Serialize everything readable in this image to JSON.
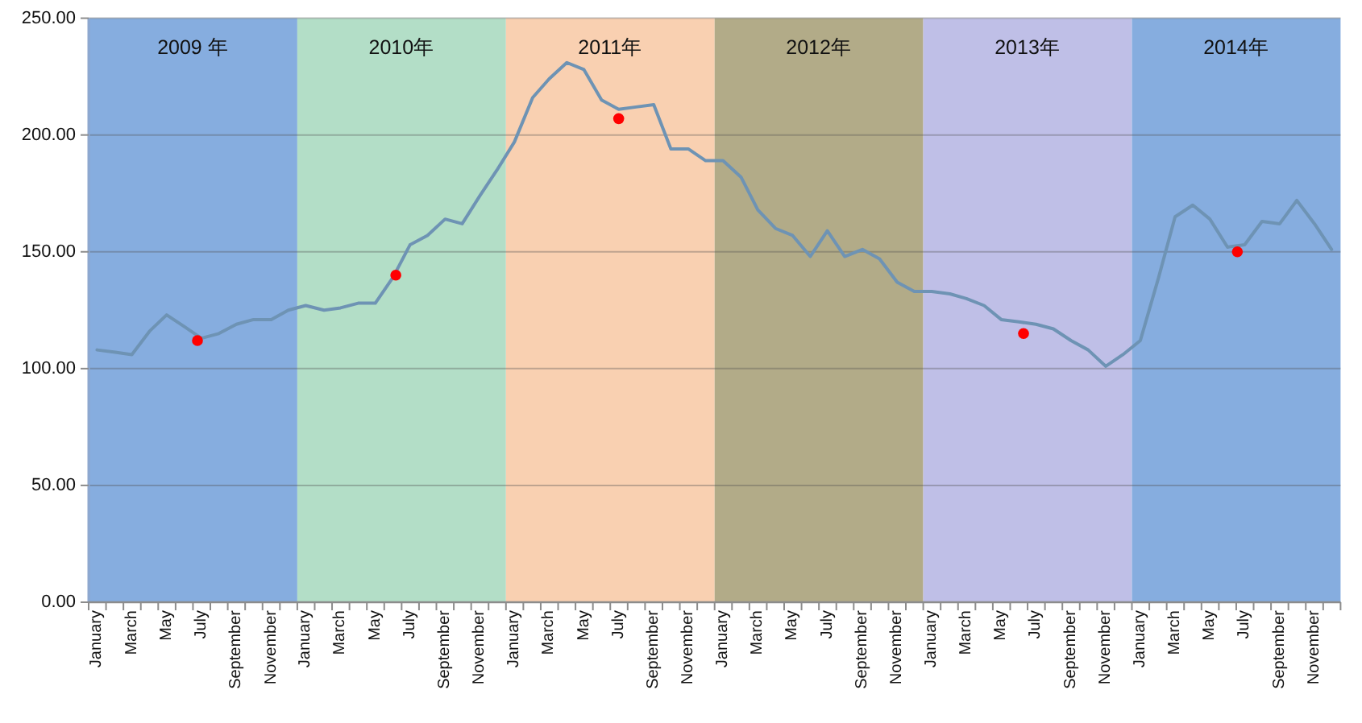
{
  "chart_data": {
    "type": "line",
    "x": [
      "2009-01-16",
      "2009-02-16",
      "2009-03-16",
      "2009-04-16",
      "2009-05-16",
      "2009-06-16",
      "2009-07-16",
      "2009-08-16",
      "2009-09-16",
      "2009-10-16",
      "2009-11-16",
      "2009-12-16",
      "2010-01-16",
      "2010-02-16",
      "2010-03-16",
      "2010-04-16",
      "2010-05-16",
      "2010-06-16",
      "2010-07-16",
      "2010-08-16",
      "2010-09-16",
      "2010-10-16",
      "2010-11-16",
      "2010-12-16",
      "2011-01-16",
      "2011-02-16",
      "2011-03-16",
      "2011-04-16",
      "2011-05-16",
      "2011-06-16",
      "2011-07-16",
      "2011-08-16",
      "2011-09-16",
      "2011-10-16",
      "2011-11-16",
      "2011-12-16",
      "2012-01-16",
      "2012-02-16",
      "2012-03-16",
      "2012-04-16",
      "2012-05-16",
      "2012-06-16",
      "2012-07-16",
      "2012-08-16",
      "2012-09-16",
      "2012-10-16",
      "2012-11-16",
      "2012-12-16",
      "2013-01-16",
      "2013-02-16",
      "2013-03-16",
      "2013-04-16",
      "2013-05-16",
      "2013-06-16",
      "2013-07-16",
      "2013-08-16",
      "2013-09-16",
      "2013-10-16",
      "2013-11-16",
      "2013-12-16",
      "2014-01-16",
      "2014-02-16",
      "2014-03-16",
      "2014-04-16",
      "2014-05-16",
      "2014-06-16",
      "2014-07-16",
      "2014-08-16",
      "2014-09-16",
      "2014-10-16",
      "2014-11-16",
      "2014-12-16"
    ],
    "series": [
      {
        "color": "#6e93b4",
        "values": [
          108,
          107,
          106,
          116,
          123,
          118,
          113,
          115,
          119,
          121,
          121,
          125,
          127,
          125,
          126,
          128,
          128,
          139,
          153,
          157,
          164,
          162,
          174,
          185,
          197,
          216,
          224,
          231,
          228,
          215,
          211,
          212,
          213,
          194,
          194,
          189,
          189,
          182,
          168,
          160,
          157,
          148,
          159,
          148,
          151,
          147,
          137,
          133,
          133,
          132,
          130,
          127,
          121,
          120,
          119,
          117,
          112,
          108,
          101,
          106,
          112,
          139,
          165,
          170,
          164,
          152,
          153,
          163,
          162,
          172,
          162,
          151
        ]
      },
      {
        "type": "scatter",
        "marker": "circle",
        "color": "#ff0000",
        "x": [
          "2009-07-09",
          "2010-06-21",
          "2011-07-16",
          "2013-06-24",
          "2014-07-03"
        ],
        "values": [
          112,
          140,
          207,
          115,
          150
        ]
      }
    ],
    "xlim": [
      "2009-01-01",
      "2015-01-01"
    ],
    "xticks": [
      {
        "value": "2009-01-16",
        "label": "January"
      },
      {
        "value": "2009-03-16",
        "label": "March"
      },
      {
        "value": "2009-05-16",
        "label": "May"
      },
      {
        "value": "2009-07-16",
        "label": "July"
      },
      {
        "value": "2009-09-16",
        "label": "September"
      },
      {
        "value": "2009-11-16",
        "label": "November"
      },
      {
        "value": "2010-01-16",
        "label": "January"
      },
      {
        "value": "2010-03-16",
        "label": "March"
      },
      {
        "value": "2010-05-16",
        "label": "May"
      },
      {
        "value": "2010-07-16",
        "label": "July"
      },
      {
        "value": "2010-09-16",
        "label": "September"
      },
      {
        "value": "2010-11-16",
        "label": "November"
      },
      {
        "value": "2011-01-16",
        "label": "January"
      },
      {
        "value": "2011-03-16",
        "label": "March"
      },
      {
        "value": "2011-05-16",
        "label": "May"
      },
      {
        "value": "2011-07-16",
        "label": "July"
      },
      {
        "value": "2011-09-16",
        "label": "September"
      },
      {
        "value": "2011-11-16",
        "label": "November"
      },
      {
        "value": "2012-01-16",
        "label": "January"
      },
      {
        "value": "2012-03-16",
        "label": "March"
      },
      {
        "value": "2012-05-16",
        "label": "May"
      },
      {
        "value": "2012-07-16",
        "label": "July"
      },
      {
        "value": "2012-09-16",
        "label": "September"
      },
      {
        "value": "2012-11-16",
        "label": "November"
      },
      {
        "value": "2013-01-16",
        "label": "January"
      },
      {
        "value": "2013-03-16",
        "label": "March"
      },
      {
        "value": "2013-05-16",
        "label": "May"
      },
      {
        "value": "2013-07-16",
        "label": "July"
      },
      {
        "value": "2013-09-16",
        "label": "September"
      },
      {
        "value": "2013-11-16",
        "label": "November"
      },
      {
        "value": "2014-01-16",
        "label": "January"
      },
      {
        "value": "2014-03-16",
        "label": "March"
      },
      {
        "value": "2014-05-16",
        "label": "May"
      },
      {
        "value": "2014-07-16",
        "label": "July"
      },
      {
        "value": "2014-09-16",
        "label": "September"
      },
      {
        "value": "2014-11-16",
        "label": "November"
      },
      {
        "value": "2009-01-01",
        "label": null
      },
      {
        "value": "2009-02-01",
        "label": null
      },
      {
        "value": "2009-03-01",
        "label": null
      },
      {
        "value": "2009-04-01",
        "label": null
      },
      {
        "value": "2009-05-01",
        "label": null
      },
      {
        "value": "2009-06-01",
        "label": null
      },
      {
        "value": "2009-07-01",
        "label": null
      },
      {
        "value": "2009-08-01",
        "label": null
      },
      {
        "value": "2009-09-01",
        "label": null
      },
      {
        "value": "2009-10-01",
        "label": null
      },
      {
        "value": "2009-11-01",
        "label": null
      },
      {
        "value": "2009-12-01",
        "label": null
      },
      {
        "value": "2010-01-01",
        "label": null
      },
      {
        "value": "2010-02-01",
        "label": null
      },
      {
        "value": "2010-03-01",
        "label": null
      },
      {
        "value": "2010-04-01",
        "label": null
      },
      {
        "value": "2010-05-01",
        "label": null
      },
      {
        "value": "2010-06-01",
        "label": null
      },
      {
        "value": "2010-07-01",
        "label": null
      },
      {
        "value": "2010-08-01",
        "label": null
      },
      {
        "value": "2010-09-01",
        "label": null
      },
      {
        "value": "2010-10-01",
        "label": null
      },
      {
        "value": "2010-11-01",
        "label": null
      },
      {
        "value": "2010-12-01",
        "label": null
      },
      {
        "value": "2011-01-01",
        "label": null
      },
      {
        "value": "2011-02-01",
        "label": null
      },
      {
        "value": "2011-03-01",
        "label": null
      },
      {
        "value": "2011-04-01",
        "label": null
      },
      {
        "value": "2011-05-01",
        "label": null
      },
      {
        "value": "2011-06-01",
        "label": null
      },
      {
        "value": "2011-07-01",
        "label": null
      },
      {
        "value": "2011-08-01",
        "label": null
      },
      {
        "value": "2011-09-01",
        "label": null
      },
      {
        "value": "2011-10-01",
        "label": null
      },
      {
        "value": "2011-11-01",
        "label": null
      },
      {
        "value": "2011-12-01",
        "label": null
      },
      {
        "value": "2012-01-01",
        "label": null
      },
      {
        "value": "2012-02-01",
        "label": null
      },
      {
        "value": "2012-03-01",
        "label": null
      },
      {
        "value": "2012-04-01",
        "label": null
      },
      {
        "value": "2012-05-01",
        "label": null
      },
      {
        "value": "2012-06-01",
        "label": null
      },
      {
        "value": "2012-07-01",
        "label": null
      },
      {
        "value": "2012-08-01",
        "label": null
      },
      {
        "value": "2012-09-01",
        "label": null
      },
      {
        "value": "2012-10-01",
        "label": null
      },
      {
        "value": "2012-11-01",
        "label": null
      },
      {
        "value": "2012-12-01",
        "label": null
      },
      {
        "value": "2013-01-01",
        "label": null
      },
      {
        "value": "2013-02-01",
        "label": null
      },
      {
        "value": "2013-03-01",
        "label": null
      },
      {
        "value": "2013-04-01",
        "label": null
      },
      {
        "value": "2013-05-01",
        "label": null
      },
      {
        "value": "2013-06-01",
        "label": null
      },
      {
        "value": "2013-07-01",
        "label": null
      },
      {
        "value": "2013-08-01",
        "label": null
      },
      {
        "value": "2013-09-01",
        "label": null
      },
      {
        "value": "2013-10-01",
        "label": null
      },
      {
        "value": "2013-11-01",
        "label": null
      },
      {
        "value": "2013-12-01",
        "label": null
      },
      {
        "value": "2014-01-01",
        "label": null
      },
      {
        "value": "2014-02-01",
        "label": null
      },
      {
        "value": "2014-03-01",
        "label": null
      },
      {
        "value": "2014-04-01",
        "label": null
      },
      {
        "value": "2014-05-01",
        "label": null
      },
      {
        "value": "2014-06-01",
        "label": null
      },
      {
        "value": "2014-07-01",
        "label": null
      },
      {
        "value": "2014-08-01",
        "label": null
      },
      {
        "value": "2014-09-01",
        "label": null
      },
      {
        "value": "2014-10-01",
        "label": null
      },
      {
        "value": "2014-11-01",
        "label": null
      },
      {
        "value": "2014-12-01",
        "label": null
      },
      {
        "value": "2015-01-01",
        "label": null
      }
    ],
    "ylim": [
      0,
      250
    ],
    "yticks": [
      {
        "value": 0,
        "label": "0.00"
      },
      {
        "value": 50,
        "label": "50.00"
      },
      {
        "value": 100,
        "label": "100.00"
      },
      {
        "value": 150,
        "label": "150.00"
      },
      {
        "value": 200,
        "label": "200.00"
      },
      {
        "value": 250,
        "label": "250.00"
      }
    ],
    "grid": "y",
    "bands": [
      {
        "axis": "x",
        "from": "2009-01-01",
        "to": "2010-01-01",
        "label": "2009 年",
        "color": "#86addf"
      },
      {
        "axis": "x",
        "from": "2010-01-01",
        "to": "2011-01-01",
        "label": "2010年",
        "color": "#b3dec7"
      },
      {
        "axis": "x",
        "from": "2011-01-01",
        "to": "2012-01-01",
        "label": "2011年",
        "color": "#f9d0b1"
      },
      {
        "axis": "x",
        "from": "2012-01-01",
        "to": "2013-01-01",
        "label": "2012年",
        "color": "#b2ab88"
      },
      {
        "axis": "x",
        "from": "2013-01-01",
        "to": "2014-01-01",
        "label": "2013年",
        "color": "#bfbfe7"
      },
      {
        "axis": "x",
        "from": "2014-01-01",
        "to": "2015-01-01",
        "label": "2014年",
        "color": "#86addf"
      }
    ]
  }
}
